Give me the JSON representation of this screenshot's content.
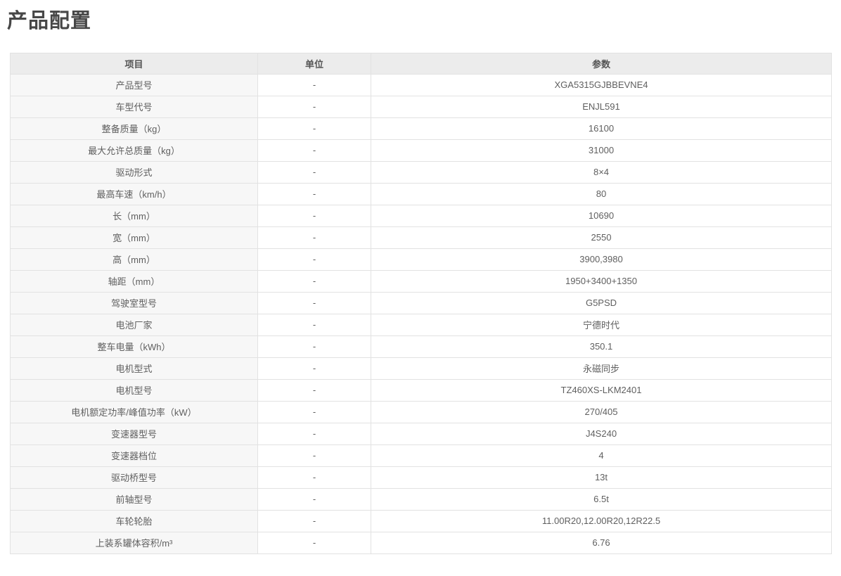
{
  "page": {
    "title": "产品配置"
  },
  "table": {
    "headers": {
      "item": "项目",
      "unit": "单位",
      "param": "参数"
    },
    "rows": [
      {
        "item": "产品型号",
        "unit": "-",
        "param": "XGA5315GJBBEVNE4"
      },
      {
        "item": "车型代号",
        "unit": "-",
        "param": "ENJL591"
      },
      {
        "item": "整备质量（kg）",
        "unit": "-",
        "param": "16100"
      },
      {
        "item": "最大允许总质量（kg）",
        "unit": "-",
        "param": "31000"
      },
      {
        "item": "驱动形式",
        "unit": "-",
        "param": "8×4"
      },
      {
        "item": "最高车速（km/h）",
        "unit": "-",
        "param": "80"
      },
      {
        "item": "长（mm）",
        "unit": "-",
        "param": "10690"
      },
      {
        "item": "宽（mm）",
        "unit": "-",
        "param": "2550"
      },
      {
        "item": "高（mm）",
        "unit": "-",
        "param": "3900,3980"
      },
      {
        "item": "轴距（mm）",
        "unit": "-",
        "param": "1950+3400+1350"
      },
      {
        "item": "驾驶室型号",
        "unit": "-",
        "param": "G5PSD"
      },
      {
        "item": "电池厂家",
        "unit": "-",
        "param": "宁德时代"
      },
      {
        "item": "整车电量（kWh）",
        "unit": "-",
        "param": "350.1"
      },
      {
        "item": "电机型式",
        "unit": "-",
        "param": "永磁同步"
      },
      {
        "item": "电机型号",
        "unit": "-",
        "param": "TZ460XS-LKM2401"
      },
      {
        "item": "电机额定功率/峰值功率（kW）",
        "unit": "-",
        "param": "270/405"
      },
      {
        "item": "变速器型号",
        "unit": "-",
        "param": "J4S240"
      },
      {
        "item": "变速器档位",
        "unit": "-",
        "param": "4"
      },
      {
        "item": "驱动桥型号",
        "unit": "-",
        "param": "13t"
      },
      {
        "item": "前轴型号",
        "unit": "-",
        "param": "6.5t"
      },
      {
        "item": "车轮轮胎",
        "unit": "-",
        "param": "11.00R20,12.00R20,12R22.5"
      },
      {
        "item": "上装系罐体容积/m³",
        "unit": "-",
        "param": "6.76"
      }
    ]
  },
  "colors": {
    "header_bg": "#ececec",
    "item_column_bg": "#f7f7f7",
    "border": "#e2e2e2",
    "text": "#5f5f5f",
    "title_text": "#474747"
  }
}
